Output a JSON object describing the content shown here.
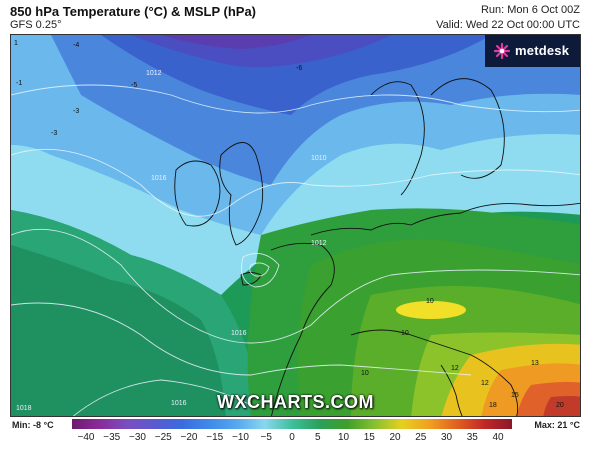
{
  "header": {
    "title": "850 hPa Temperature (°C) & MSLP (hPa)",
    "model": "GFS 0.25°",
    "run": "Run: Mon 6 Oct 00Z",
    "valid": "Valid: Wed 22 Oct 00:00 UTC"
  },
  "logo": {
    "text": "metdesk",
    "icon": "metdesk-logo-icon"
  },
  "watermark": "WXCHARTS.COM",
  "map_labels": {
    "isobars": [
      "1012",
      "1016",
      "1010",
      "1012",
      "1016",
      "1018",
      "1016"
    ],
    "temps": [
      "1",
      "-4",
      "-3",
      "-5",
      "-6",
      "-3",
      "-1",
      "10",
      "12",
      "13",
      "10",
      "12",
      "15",
      "18",
      "20",
      "10"
    ]
  },
  "legend": {
    "min": "Min: -8 °C",
    "max": "Max: 21 °C",
    "ticks": [
      "−40",
      "−35",
      "−30",
      "−25",
      "−20",
      "−15",
      "−10",
      "−5",
      "0",
      "5",
      "10",
      "15",
      "20",
      "25",
      "30",
      "35",
      "40"
    ],
    "colors": [
      "#6e1a6e",
      "#8a2b9a",
      "#7a4fc0",
      "#5a5ad0",
      "#3c6be0",
      "#3f8ae8",
      "#56a8ee",
      "#8ad6f0",
      "#3fbf9a",
      "#2aa05a",
      "#3f9e2a",
      "#86c030",
      "#e6d020",
      "#f0a020",
      "#e06020",
      "#c02828",
      "#8a1828"
    ]
  }
}
